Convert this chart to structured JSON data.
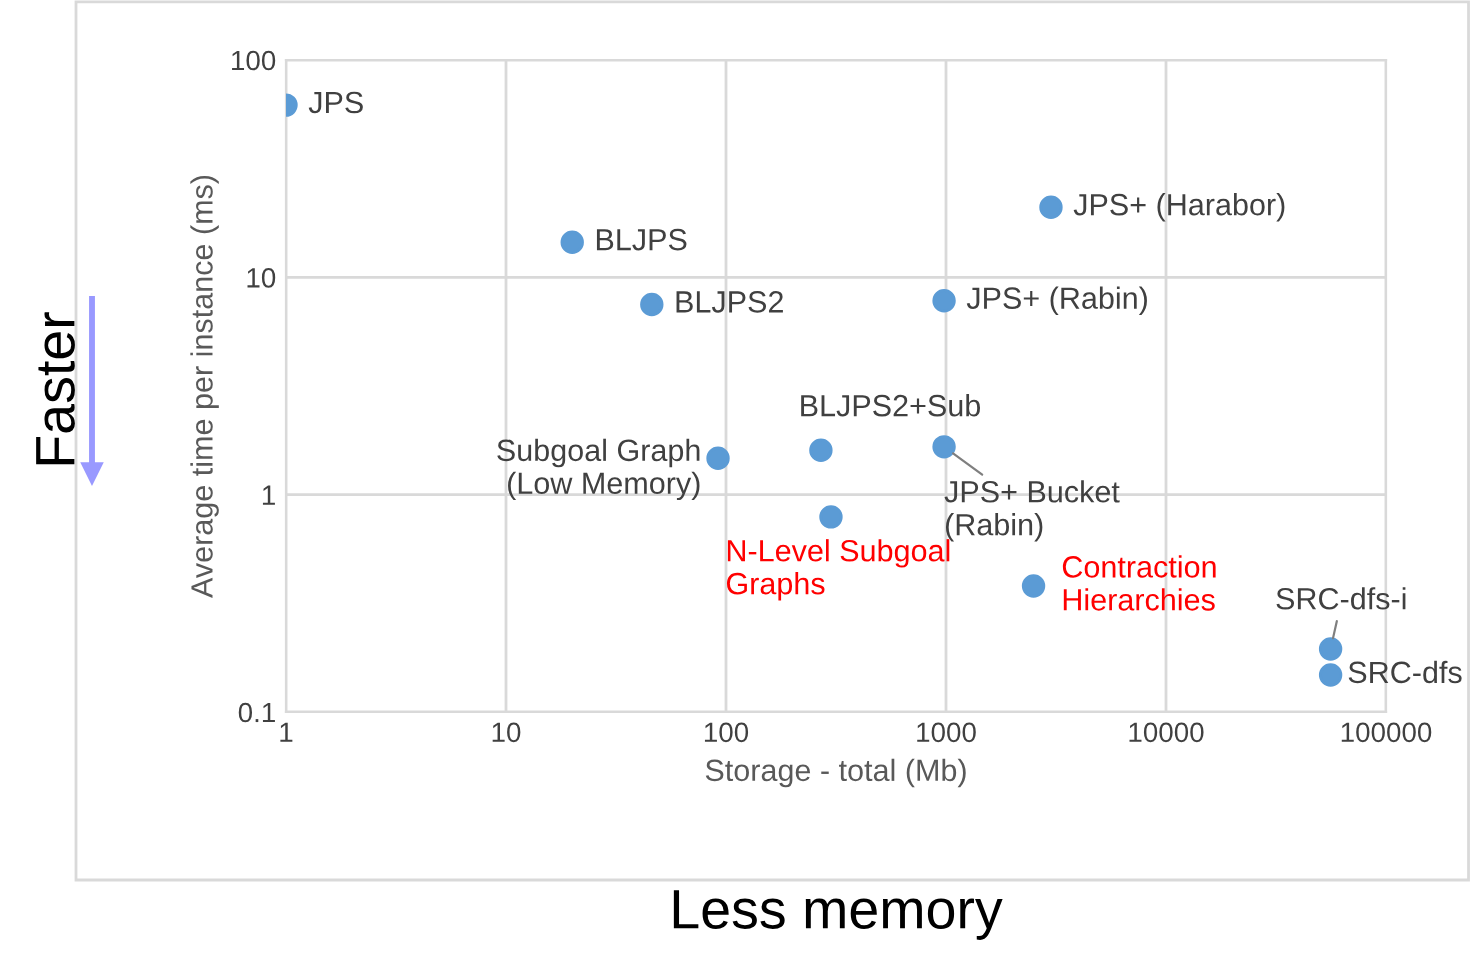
{
  "chart_data": {
    "type": "scatter",
    "xlabel": "Storage - total (Mb)",
    "ylabel": "Average time per instance (ms)",
    "x": [
      1,
      20,
      46,
      3000,
      980,
      92,
      270,
      980,
      300,
      2500,
      56000,
      56000
    ],
    "series": [
      {
        "color": "#5b9bd5",
        "values": [
          62,
          14.5,
          7.5,
          21,
          7.8,
          1.47,
          1.6,
          1.66,
          0.79,
          0.38,
          0.195,
          0.148
        ]
      }
    ],
    "log": "xy",
    "xlim": [
      1,
      100000
    ],
    "ylim": [
      0.1,
      100
    ],
    "xticks": [
      1,
      10,
      100,
      1000,
      10000,
      100000
    ],
    "yticks": [
      0.1,
      1,
      10,
      100
    ],
    "grid": true,
    "marker": "circle",
    "annotations": [
      {
        "text": "JPS",
        "x": 1,
        "y": 62
      },
      {
        "text": "BLJPS",
        "x": 20,
        "y": 14.5
      },
      {
        "text": "BLJPS2",
        "x": 46,
        "y": 7.5
      },
      {
        "text": "JPS+ (Harabor)",
        "x": 3000,
        "y": 21
      },
      {
        "text": "JPS+ (Rabin)",
        "x": 980,
        "y": 7.8
      },
      {
        "text": "Subgoal Graph\n(Low Memory)",
        "x": 92,
        "y": 1.47
      },
      {
        "text": "BLJPS2+Sub",
        "x": 270,
        "y": 1.6
      },
      {
        "text": "JPS+ Bucket\n(Rabin)",
        "x": 980,
        "y": 1.66
      },
      {
        "text": "N-Level Subgoal\nGraphs",
        "x": 300,
        "y": 0.79
      },
      {
        "text": "Contraction\nHierarchies",
        "x": 2500,
        "y": 0.38
      },
      {
        "text": "SRC-dfs-i",
        "x": 56000,
        "y": 0.195
      },
      {
        "text": "SRC-dfs",
        "x": 56000,
        "y": 0.148
      },
      "Faster",
      "Less memory"
    ]
  }
}
